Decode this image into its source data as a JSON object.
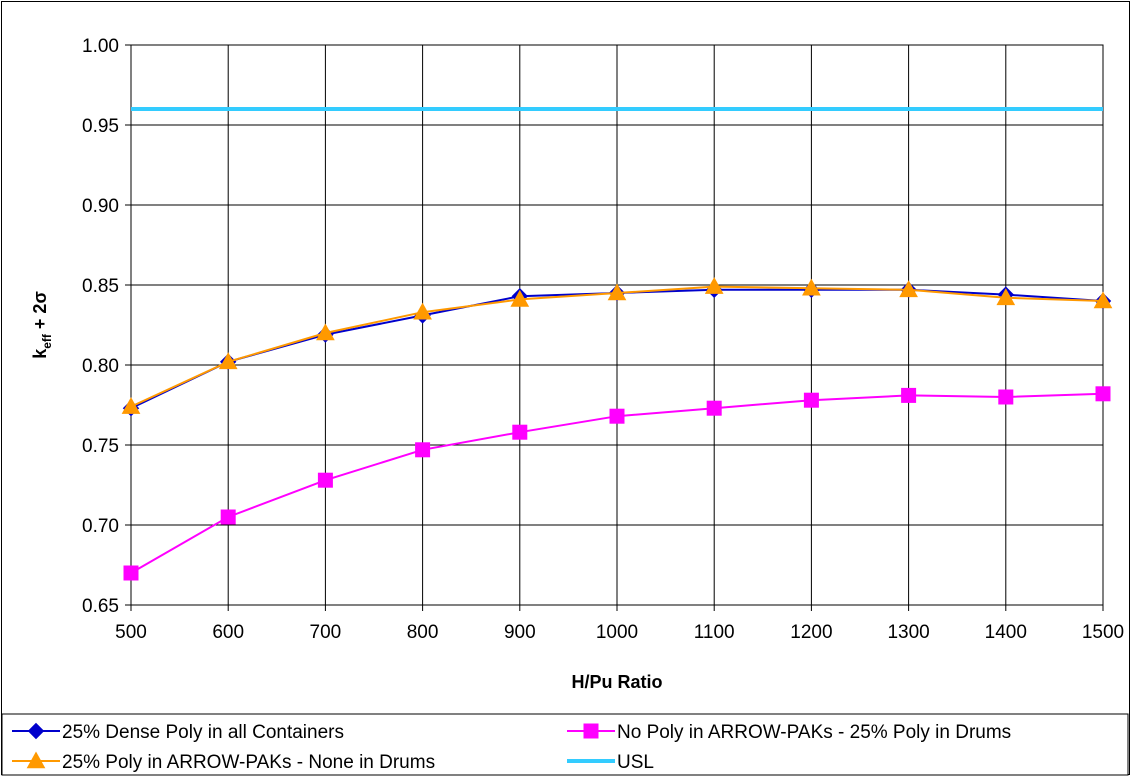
{
  "chart_data": {
    "type": "line",
    "xlabel": "H/Pu Ratio",
    "ylabel_main": "k",
    "ylabel_sub": "eff",
    "ylabel_rest": " + 2σ",
    "x": [
      500,
      600,
      700,
      800,
      900,
      1000,
      1100,
      1200,
      1300,
      1400,
      1500
    ],
    "xlim": [
      500,
      1500
    ],
    "ylim": [
      0.65,
      1.0
    ],
    "x_ticks": [
      "500",
      "600",
      "700",
      "800",
      "900",
      "1000",
      "1100",
      "1200",
      "1300",
      "1400",
      "1500"
    ],
    "y_ticks": [
      "0.65",
      "0.70",
      "0.75",
      "0.80",
      "0.85",
      "0.90",
      "0.95",
      "1.00"
    ],
    "grid": true,
    "legend_position": "bottom",
    "series": [
      {
        "name": "25% Dense Poly in all Containers",
        "color": "#0000CC",
        "marker": "diamond",
        "values": [
          0.773,
          0.802,
          0.819,
          0.831,
          0.843,
          0.845,
          0.847,
          0.847,
          0.847,
          0.844,
          0.84
        ]
      },
      {
        "name": "No Poly in ARROW-PAKs - 25% Poly in Drums",
        "color": "#FF00FF",
        "marker": "square",
        "values": [
          0.67,
          0.705,
          0.728,
          0.747,
          0.758,
          0.768,
          0.773,
          0.778,
          0.781,
          0.78,
          0.782
        ]
      },
      {
        "name": "25% Poly in ARROW-PAKs - None in Drums",
        "color": "#FF9900",
        "marker": "triangle",
        "values": [
          0.774,
          0.802,
          0.82,
          0.833,
          0.841,
          0.845,
          0.849,
          0.848,
          0.847,
          0.842,
          0.84
        ]
      },
      {
        "name": "USL",
        "color": "#33CCFF",
        "marker": "none",
        "values": [
          0.96,
          0.96,
          0.96,
          0.96,
          0.96,
          0.96,
          0.96,
          0.96,
          0.96,
          0.96,
          0.96
        ]
      }
    ]
  }
}
